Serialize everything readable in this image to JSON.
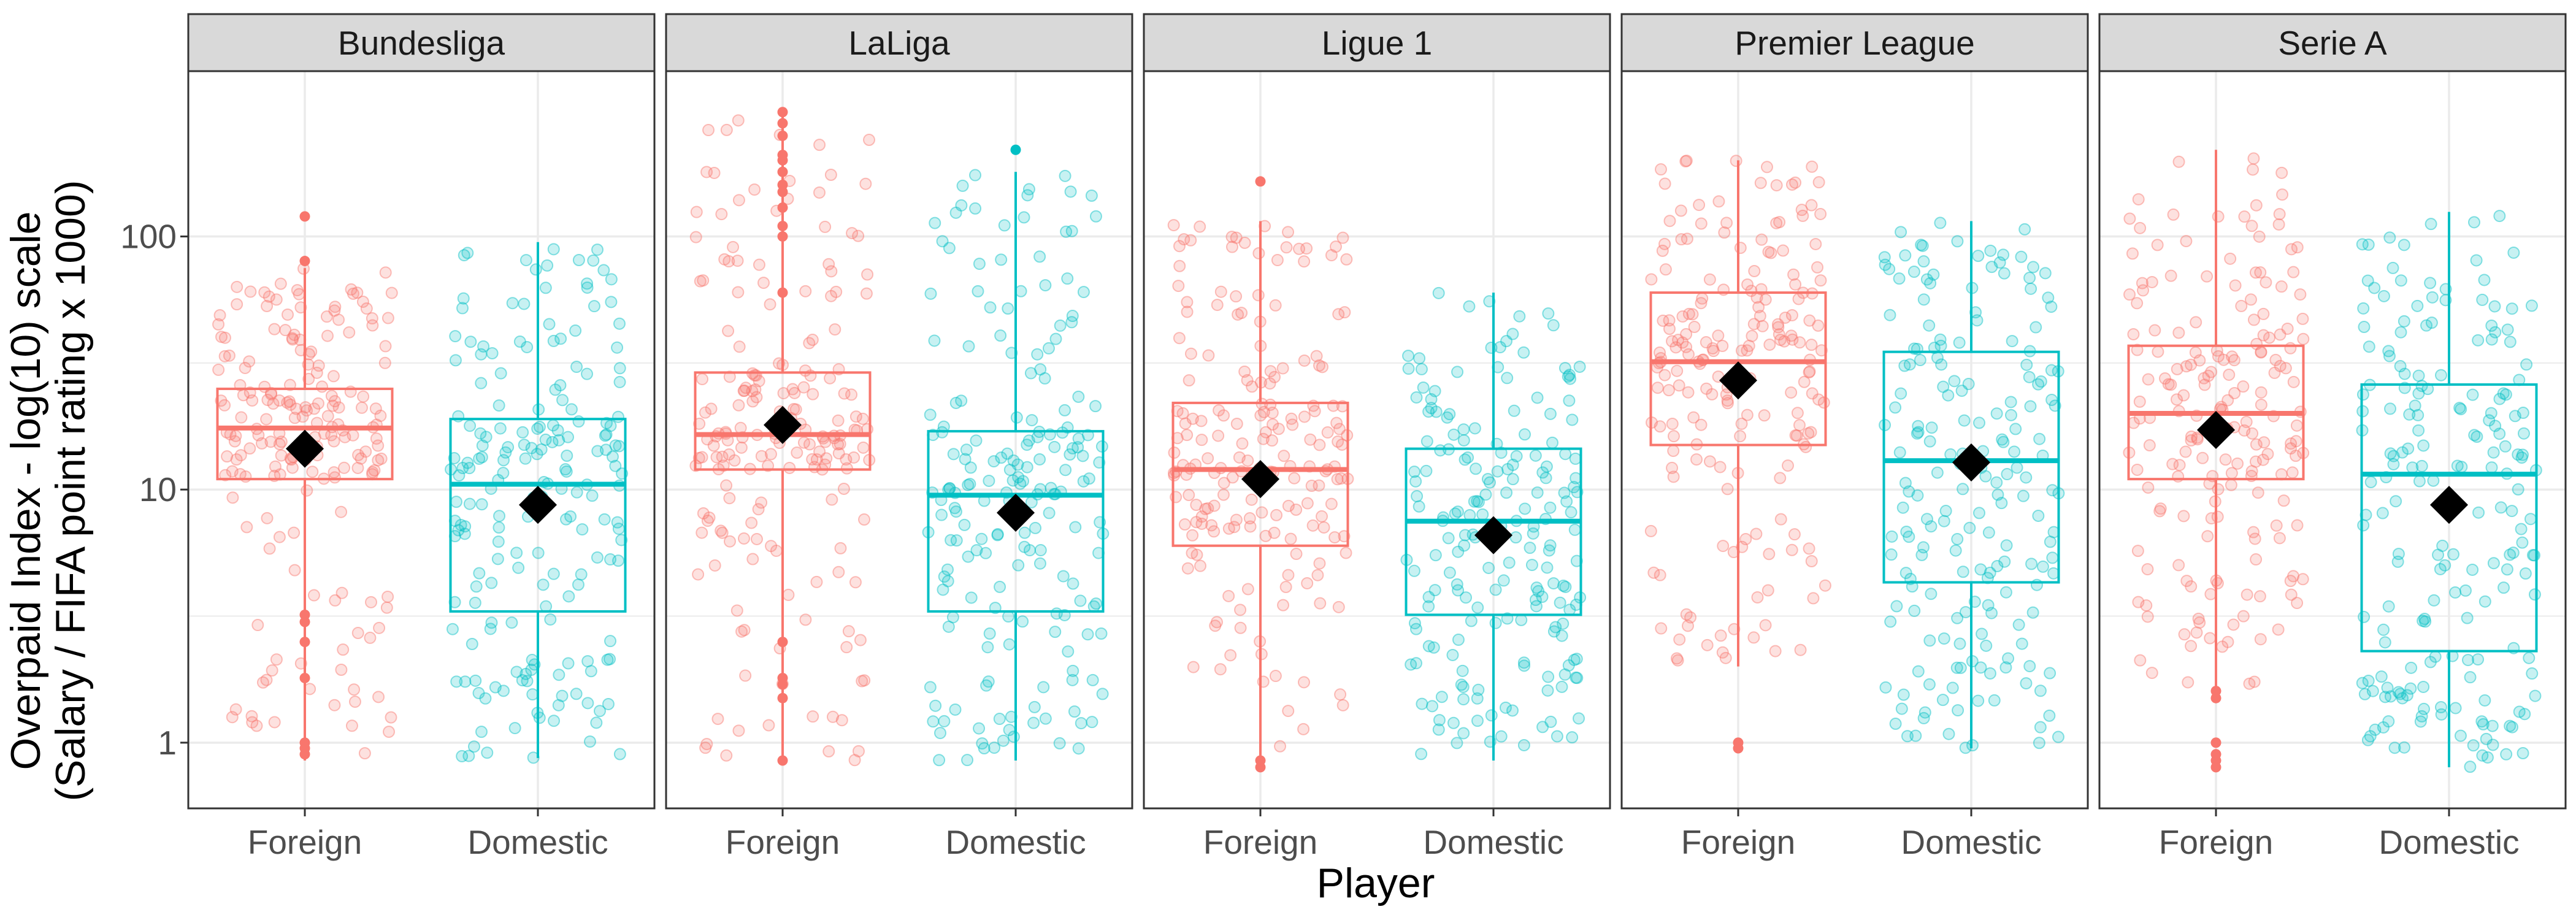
{
  "chart_data": {
    "type": "boxplot",
    "xlabel": "Player",
    "ylabel": [
      "Overpaid Index - log(10) scale",
      "(Salary / FIFA point rating x 1000)"
    ],
    "y_scale": "log10",
    "ylim": [
      0.55,
      450
    ],
    "y_ticks": [
      1,
      10,
      100
    ],
    "y_tick_labels": [
      "1",
      "10",
      "100"
    ],
    "categories": [
      "Foreign",
      "Domestic"
    ],
    "grid": true,
    "legend": "none",
    "colors": {
      "Foreign": "#F8766D",
      "Domestic": "#00BFC4",
      "mean": "#000000",
      "strip_bg": "#D9D9D9",
      "grid": "#EBEBEB"
    },
    "facets": [
      {
        "name": "Bundesliga",
        "boxes": [
          {
            "group": "Foreign",
            "lower_whisker": 0.85,
            "q1": 11,
            "median": 17.5,
            "q3": 25,
            "upper_whisker": 75,
            "mean": 14.5,
            "outliers": [
              0.9,
              0.95,
              1.0,
              1.8,
              2.5,
              3.0,
              3.2,
              80,
              120
            ]
          },
          {
            "group": "Domestic",
            "lower_whisker": 0.87,
            "q1": 3.3,
            "median": 10.5,
            "q3": 19,
            "upper_whisker": 95,
            "mean": 8.7,
            "outliers": []
          }
        ]
      },
      {
        "name": "LaLiga",
        "boxes": [
          {
            "group": "Foreign",
            "lower_whisker": 0.85,
            "q1": 12,
            "median": 16.5,
            "q3": 29,
            "upper_whisker": 300,
            "mean": 18,
            "outliers": [
              0.85,
              1.5,
              1.7,
              1.8,
              2.5,
              60,
              100,
              110,
              130,
              150,
              160,
              180,
              200,
              210,
              250,
              280,
              310
            ]
          },
          {
            "group": "Domestic",
            "lower_whisker": 0.85,
            "q1": 3.3,
            "median": 9.5,
            "q3": 17,
            "upper_whisker": 180,
            "mean": 8.1,
            "outliers": [
              220
            ]
          }
        ]
      },
      {
        "name": "Ligue 1",
        "boxes": [
          {
            "group": "Foreign",
            "lower_whisker": 0.85,
            "q1": 6,
            "median": 12,
            "q3": 22,
            "upper_whisker": 115,
            "mean": 11,
            "outliers": [
              0.8,
              0.85,
              165
            ]
          },
          {
            "group": "Domestic",
            "lower_whisker": 0.85,
            "q1": 3.2,
            "median": 7.5,
            "q3": 14.5,
            "upper_whisker": 60,
            "mean": 6.6,
            "outliers": []
          }
        ]
      },
      {
        "name": "Premier League",
        "boxes": [
          {
            "group": "Foreign",
            "lower_whisker": 2.0,
            "q1": 15,
            "median": 32,
            "q3": 60,
            "upper_whisker": 200,
            "mean": 27,
            "outliers": [
              0.95,
              1.0
            ]
          },
          {
            "group": "Domestic",
            "lower_whisker": 0.95,
            "q1": 4.3,
            "median": 13,
            "q3": 35,
            "upper_whisker": 115,
            "mean": 12.8,
            "outliers": []
          }
        ]
      },
      {
        "name": "Serie A",
        "boxes": [
          {
            "group": "Foreign",
            "lower_whisker": 1.6,
            "q1": 11,
            "median": 20,
            "q3": 37,
            "upper_whisker": 220,
            "mean": 17.2,
            "outliers": [
              0.8,
              0.85,
              0.9,
              1.0,
              1.5,
              1.6
            ]
          },
          {
            "group": "Domestic",
            "lower_whisker": 0.8,
            "q1": 2.3,
            "median": 11.5,
            "q3": 26,
            "upper_whisker": 125,
            "mean": 8.7,
            "outliers": []
          }
        ]
      }
    ]
  }
}
